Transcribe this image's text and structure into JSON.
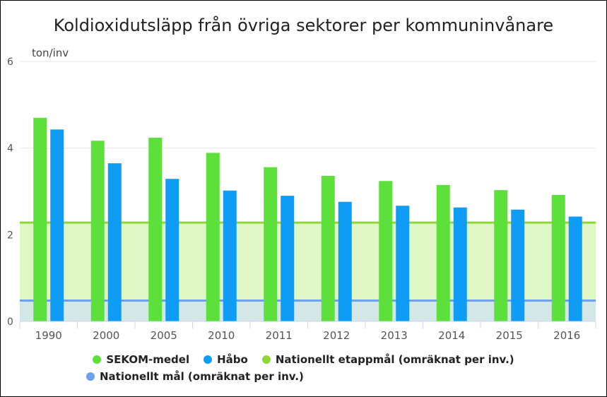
{
  "chart_data": {
    "type": "bar",
    "title": "Koldioxidutsläpp från övriga sektorer per kommuninvånare",
    "ylabel": "ton/inv",
    "xlabel": "",
    "ylim": [
      0,
      6
    ],
    "yticks": [
      0,
      2,
      4,
      6
    ],
    "categories": [
      "1990",
      "2000",
      "2005",
      "2010",
      "2011",
      "2012",
      "2013",
      "2014",
      "2015",
      "2016"
    ],
    "series": [
      {
        "name": "SEKOM-medel",
        "color": "#5ddf3c",
        "values": [
          4.7,
          4.17,
          4.24,
          3.89,
          3.56,
          3.36,
          3.24,
          3.15,
          3.03,
          2.92
        ]
      },
      {
        "name": "Håbo",
        "color": "#0f9cf5",
        "values": [
          4.43,
          3.65,
          3.29,
          3.02,
          2.9,
          2.76,
          2.67,
          2.63,
          2.58,
          2.42
        ]
      }
    ],
    "reference_lines": [
      {
        "name": "Nationellt etappmål (omräknat per inv.)",
        "value": 2.28,
        "color": "#8fd63a",
        "fill": "#dff7c4"
      },
      {
        "name": "Nationellt mål (omräknat per inv.)",
        "value": 0.48,
        "color": "#6ea0f0",
        "fill": "#d3e8e6"
      }
    ],
    "legend_position": "bottom",
    "grid": true
  }
}
